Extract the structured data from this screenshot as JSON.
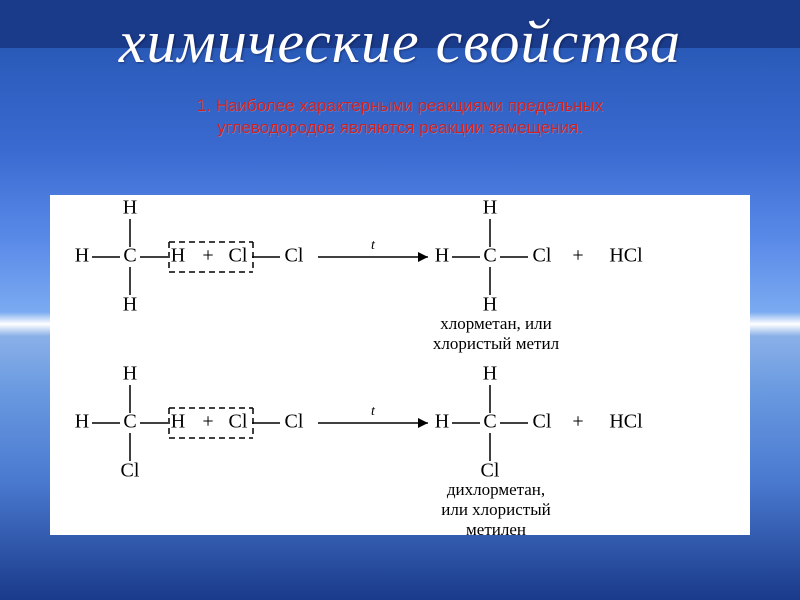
{
  "title": "химические свойства",
  "subtitle_line1": "1. Наиболее характерными реакциями предельных",
  "subtitle_line2": "углеводородов являются реакции замещения.",
  "title_color": "#ffffff",
  "subtitle_color": "#d02020",
  "panel_bg": "#ffffff",
  "stroke_color": "#000000",
  "text_color": "#000000",
  "font_family": "Times New Roman",
  "atom_font_size": 20,
  "label_font_size": 17,
  "arrow_label_font_size": 14,
  "bond_len": 28,
  "dash_pattern": "6,4",
  "reactions": [
    {
      "reactant1": {
        "center": "C",
        "up": "H",
        "down": "H",
        "left": "H",
        "right": "H"
      },
      "reactant2": {
        "left": "Cl",
        "right": "Cl"
      },
      "arrow_label": "t",
      "product1": {
        "center": "C",
        "up": "H",
        "down": "H",
        "left": "H",
        "right": "Cl"
      },
      "product2": "HCl",
      "product1_label_line1": "хлорметан, или",
      "product1_label_line2": "хлористый метил"
    },
    {
      "reactant1": {
        "center": "C",
        "up": "H",
        "down": "Cl",
        "left": "H",
        "right": "H"
      },
      "reactant2": {
        "left": "Cl",
        "right": "Cl"
      },
      "arrow_label": "t",
      "product1": {
        "center": "C",
        "up": "H",
        "down": "Cl",
        "left": "H",
        "right": "Cl"
      },
      "product2": "HCl",
      "product1_label_line1": "дихлорметан,",
      "product1_label_line2": "или  хлористый",
      "product1_label_line3": "метилен"
    }
  ]
}
